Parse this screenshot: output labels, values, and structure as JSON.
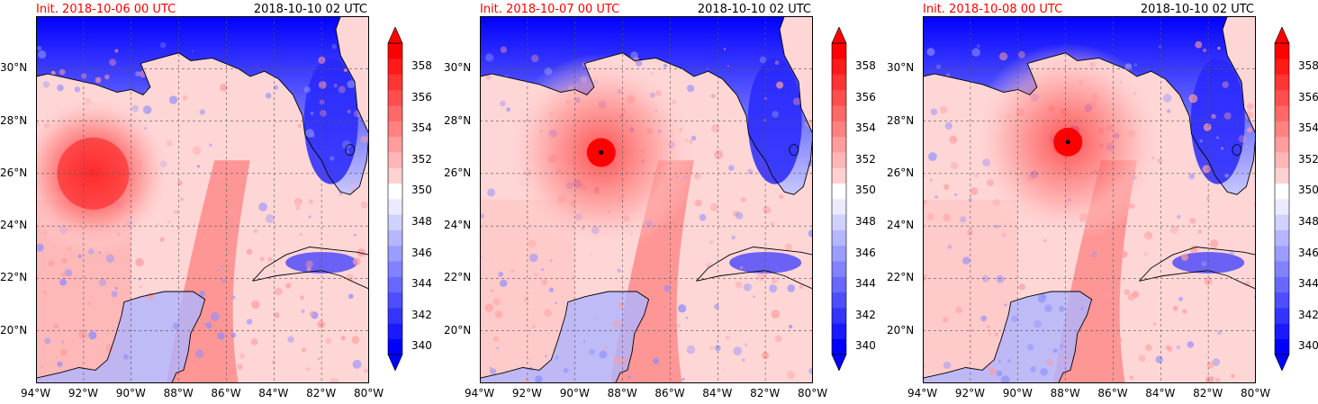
{
  "colors": {
    "warm_core": "#ff0000",
    "cold": "#0000ff",
    "neutral": "#ffffff",
    "title_init": "#ff0000",
    "title_valid": "#000000",
    "coast": "#000000",
    "grid": "#555555"
  },
  "colorbar": {
    "levels": [
      340,
      341,
      342,
      343,
      344,
      345,
      346,
      347,
      348,
      349,
      350,
      351,
      352,
      353,
      354,
      355,
      356,
      357,
      358,
      359,
      360
    ],
    "tick_labels": [
      "340",
      "342",
      "344",
      "346",
      "348",
      "350",
      "352",
      "354",
      "356",
      "358"
    ],
    "extend": "both"
  },
  "map": {
    "lon_range": [
      -94,
      -80
    ],
    "lat_range": [
      18,
      32
    ],
    "lon_ticks": [
      "94°W",
      "92°W",
      "90°W",
      "88°W",
      "86°W",
      "84°W",
      "82°W",
      "80°W"
    ],
    "lat_ticks": [
      "20°N",
      "22°N",
      "24°N",
      "26°N",
      "28°N",
      "30°N"
    ],
    "grid": true,
    "grid_style": "dashed"
  },
  "panels": [
    {
      "init_label": "Init. 2018-10-06 00 UTC",
      "valid_label": "2018-10-10 02 UTC",
      "storm_center": {
        "lon": -91.6,
        "lat": 26.0
      },
      "pattern": "broad-warm-west"
    },
    {
      "init_label": "Init. 2018-10-07 00 UTC",
      "valid_label": "2018-10-10 02 UTC",
      "storm_center": {
        "lon": -88.9,
        "lat": 26.8
      },
      "pattern": "compact-core"
    },
    {
      "init_label": "Init. 2018-10-08 00 UTC",
      "valid_label": "2018-10-10 02 UTC",
      "storm_center": {
        "lon": -87.9,
        "lat": 27.2
      },
      "pattern": "compact-core"
    }
  ]
}
